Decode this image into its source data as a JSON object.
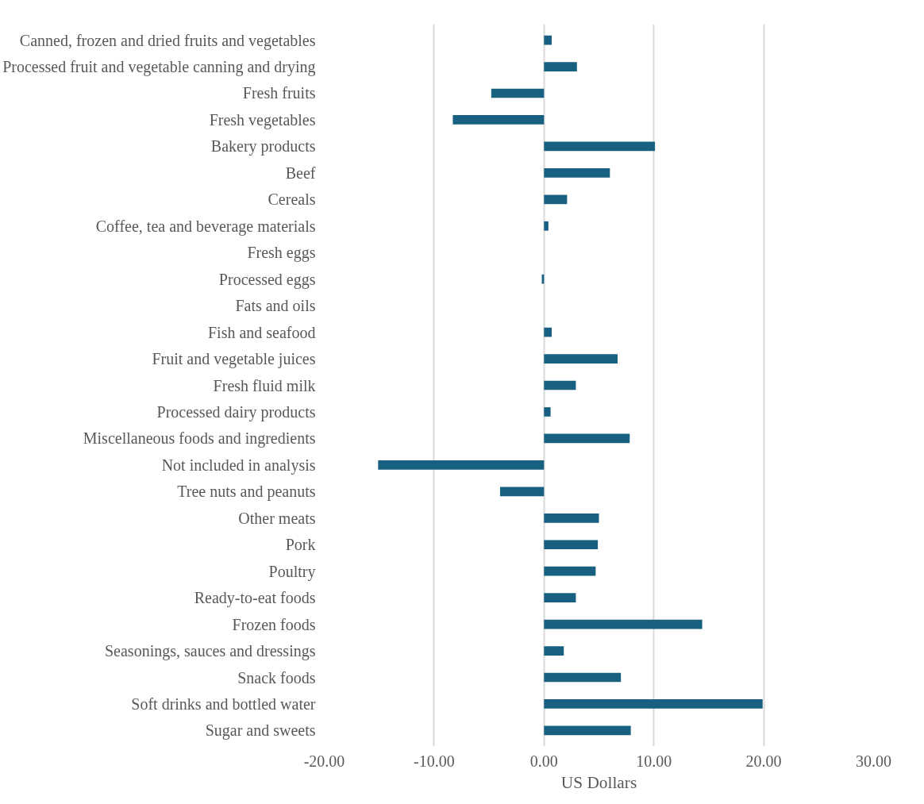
{
  "chart_data": {
    "type": "bar",
    "orientation": "horizontal",
    "xlabel": "US Dollars",
    "categories": [
      "Canned, frozen and dried fruits and vegetables",
      "Processed fruit and vegetable canning and drying",
      "Fresh fruits",
      "Fresh vegetables",
      "Bakery products",
      "Beef",
      "Cereals",
      "Coffee, tea and beverage materials",
      "Fresh eggs",
      "Processed eggs",
      "Fats and oils",
      "Fish and seafood",
      "Fruit and vegetable juices",
      "Fresh fluid milk",
      "Processed dairy products",
      "Miscellaneous foods and ingredients",
      "Not included in analysis",
      "Tree nuts and peanuts",
      "Other meats",
      "Pork",
      "Poultry",
      "Ready-to-eat foods",
      "Frozen foods",
      "Seasonings, sauces and dressings",
      "Snack foods",
      "Soft drinks and bottled water",
      "Sugar and sweets"
    ],
    "values": [
      0.7,
      3.0,
      -4.8,
      -8.3,
      10.1,
      6.0,
      2.1,
      0.4,
      0,
      -0.2,
      0,
      0.7,
      6.7,
      2.9,
      0.6,
      7.8,
      -15.1,
      -4.0,
      5.0,
      4.9,
      4.7,
      2.9,
      14.4,
      1.8,
      7.0,
      19.9,
      7.9
    ],
    "color": "#17607f",
    "xlim": [
      -20,
      30
    ],
    "xticks": [
      {
        "value": -20,
        "label": "-20.00"
      },
      {
        "value": -10,
        "label": "-10.00"
      },
      {
        "value": 0,
        "label": "0.00"
      },
      {
        "value": 10,
        "label": "10.00"
      },
      {
        "value": 20,
        "label": "20.00"
      },
      {
        "value": 30,
        "label": "30.00"
      }
    ],
    "grid": "x"
  }
}
